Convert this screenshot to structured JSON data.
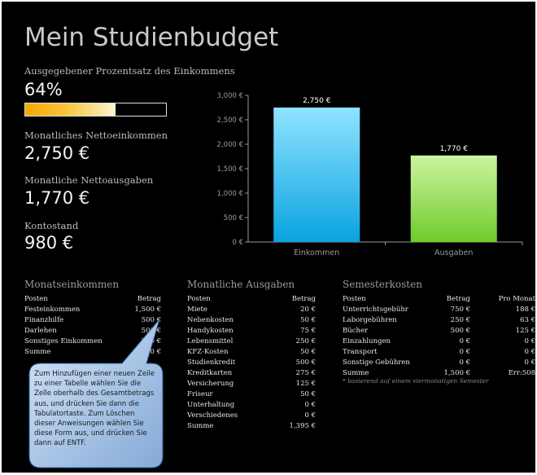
{
  "title": "Mein Studienbudget",
  "summary": {
    "percent_label": "Ausgegebener Prozentsatz des Einkommens",
    "percent_value": "64%",
    "percent_fraction": 0.64,
    "income_label": "Monatliches Nettoeinkommen",
    "income_value": "2,750 €",
    "expenses_label": "Monatliche Nettoausgaben",
    "expenses_value": "1,770 €",
    "balance_label": "Kontostand",
    "balance_value": "980 €"
  },
  "chart_data": {
    "type": "bar",
    "categories": [
      "Einkommen",
      "Ausgaben"
    ],
    "values": [
      2750,
      1770
    ],
    "data_labels": [
      "2,750 €",
      "1,770 €"
    ],
    "ylim": [
      0,
      3000
    ],
    "yticks": [
      0,
      500,
      1000,
      1500,
      2000,
      2500,
      3000
    ],
    "ytick_labels": [
      "0 €",
      "500 €",
      "1,000 €",
      "1,500 €",
      "2,000 €",
      "2,500 €",
      "3,000 €"
    ],
    "colors": [
      "#1aa8e8",
      "#7ed23a"
    ],
    "grid": false
  },
  "income_table": {
    "title": "Monatseinkommen",
    "headers": [
      "Posten",
      "Betrag"
    ],
    "rows": [
      [
        "Festeinkommen",
        "1,500 €"
      ],
      [
        "Finanzhilfe",
        "500 €"
      ],
      [
        "Darlehen",
        "500 €"
      ],
      [
        "Sonstiges Einkommen",
        "250 €"
      ],
      [
        "Summe",
        "2,750 €"
      ]
    ]
  },
  "expense_table": {
    "title": "Monatliche Ausgaben",
    "headers": [
      "Posten",
      "Betrag"
    ],
    "rows": [
      [
        "Miete",
        "20 €"
      ],
      [
        "Nebenkosten",
        "50 €"
      ],
      [
        "Handykosten",
        "75 €"
      ],
      [
        "Lebensmittel",
        "250 €"
      ],
      [
        "KFZ-Kosten",
        "50 €"
      ],
      [
        "Studienkredit",
        "500 €"
      ],
      [
        "Kreditkarten",
        "275 €"
      ],
      [
        "Versicherung",
        "125 €"
      ],
      [
        "Friseur",
        "50 €"
      ],
      [
        "Unterhaltung",
        "0 €"
      ],
      [
        "Verschiedenes",
        "0 €"
      ],
      [
        "Summe",
        "1,395 €"
      ]
    ]
  },
  "semester_table": {
    "title": "Semesterkosten",
    "headers": [
      "Posten",
      "Betrag",
      "Pro Monat"
    ],
    "rows": [
      [
        "Unterrichtsgebühr",
        "750 €",
        "188 €"
      ],
      [
        "Laborgebühren",
        "250 €",
        "63 €"
      ],
      [
        "Bücher",
        "500 €",
        "125 €"
      ],
      [
        "Einzahlungen",
        "0 €",
        "0 €"
      ],
      [
        "Transport",
        "0 €",
        "0 €"
      ],
      [
        "Sonstige Gebühren",
        "0 €",
        "0 €"
      ],
      [
        "Summe",
        "1,500 €",
        "Err:508"
      ]
    ],
    "note": "* basierend auf einem viermonatigen Semester"
  },
  "callout": {
    "text": "Zum Hinzufügen einer neuen Zeile zu einer Tabelle wählen Sie die Zelle oberhalb des Gesamtbetrags aus, und drücken Sie dann die Tabulatortaste. Zum Löschen dieser Anweisungen wählen Sie diese Form aus, und drücken Sie dann auf ENTF."
  }
}
